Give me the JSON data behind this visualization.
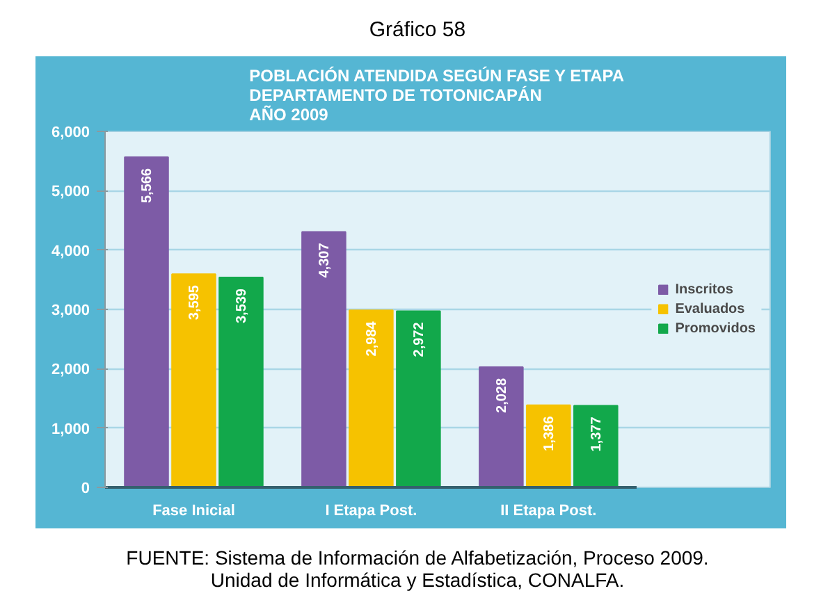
{
  "chart_data": {
    "type": "bar",
    "title": "Gráfico 58",
    "subtitle": "POBLACIÓN ATENDIDA SEGÚN FASE Y ETAPA\nDEPARTAMENTO DE TOTONICAPÁN\nAÑO 2009",
    "categories": [
      "Fase Inicial",
      "I Etapa Post.",
      "II Etapa Post."
    ],
    "series": [
      {
        "name": "Inscritos",
        "color": "#7d5ba6",
        "values": [
          5566,
          4307,
          2028
        ],
        "value_labels": [
          "5,566",
          "4,307",
          "2,028"
        ]
      },
      {
        "name": "Evaluados",
        "color": "#f6c200",
        "values": [
          3595,
          2984,
          1386
        ],
        "value_labels": [
          "3,595",
          "2,984",
          "1,386"
        ]
      },
      {
        "name": "Promovidos",
        "color": "#12a84b",
        "values": [
          3539,
          2972,
          1377
        ],
        "value_labels": [
          "3,539",
          "2,972",
          "1,377"
        ]
      }
    ],
    "ylim": [
      0,
      6000
    ],
    "yticks": [
      0,
      {
        "value": 1000,
        "label": "1,000"
      },
      {
        "value": 2000,
        "label": "2,000"
      },
      {
        "value": 3000,
        "label": "3,000"
      },
      {
        "value": 4000,
        "label": "4,000"
      },
      {
        "value": 5000,
        "label": "5,000"
      },
      {
        "value": 6000,
        "label": "6,000"
      }
    ],
    "grid": "y",
    "legend": "right",
    "annotations": [
      "FUENTE: Sistema de Información de Alfabetización, Proceso 2009.",
      "Unidad de Informática y Estadística, CONALFA."
    ]
  }
}
